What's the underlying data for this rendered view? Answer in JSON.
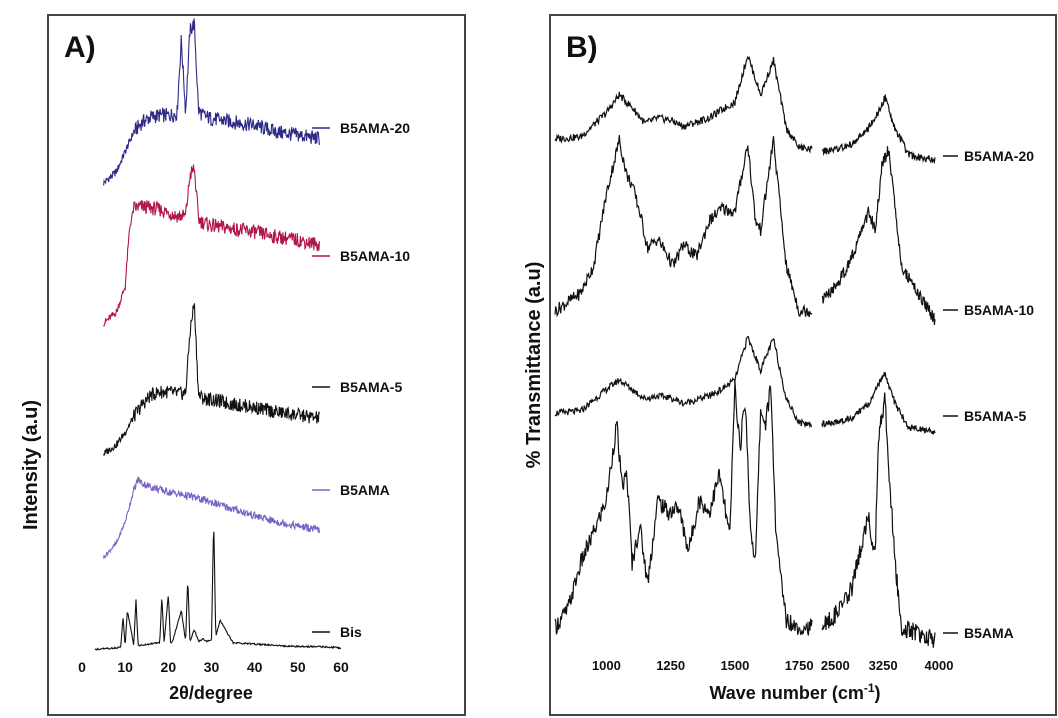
{
  "panelA": {
    "letter": "A)",
    "xlabel": "2θ/degree",
    "ylabel": "Intensity (a.u)",
    "xlim": [
      0,
      60
    ],
    "xticks": [
      "0",
      "10",
      "20",
      "30",
      "40",
      "50",
      "60"
    ],
    "colors": {
      "frame": "#444444"
    }
  },
  "panelB": {
    "letter": "B)",
    "xlabel_main": "Wave number (cm",
    "xlabel_sup": "-1",
    "xlabel_close": ")",
    "ylabel": "% Transmittance (a.u)",
    "xticks_left": [
      "1000",
      "1250",
      "1500",
      "1750"
    ],
    "xticks_right": [
      "2500",
      "3250",
      "4000"
    ],
    "colors": {
      "frame": "#444444"
    }
  },
  "chart_data": [
    {
      "type": "line",
      "title": "",
      "xlabel": "2θ/degree",
      "ylabel": "Intensity (a.u)",
      "xlim": [
        0,
        60
      ],
      "grid": false,
      "series": [
        {
          "name": "B5AMA-20",
          "color": "#2e2a86",
          "x": [
            5,
            8,
            10,
            12,
            14,
            16,
            18,
            20,
            22,
            23,
            24,
            25,
            26,
            27,
            28,
            30,
            35,
            40,
            45,
            50,
            55
          ],
          "y": [
            0.03,
            0.1,
            0.22,
            0.34,
            0.4,
            0.43,
            0.44,
            0.44,
            0.45,
            0.9,
            0.46,
            0.95,
            1.0,
            0.47,
            0.44,
            0.42,
            0.4,
            0.38,
            0.34,
            0.32,
            0.3
          ]
        },
        {
          "name": "B5AMA-10",
          "color": "#b0164a",
          "x": [
            5,
            8,
            10,
            11,
            12,
            14,
            16,
            18,
            20,
            22,
            24,
            25,
            26,
            27,
            28,
            30,
            35,
            40,
            45,
            50,
            55
          ],
          "y": [
            0.03,
            0.1,
            0.26,
            0.62,
            0.75,
            0.76,
            0.75,
            0.74,
            0.72,
            0.7,
            0.7,
            0.95,
            1.0,
            0.68,
            0.66,
            0.64,
            0.62,
            0.6,
            0.57,
            0.55,
            0.52
          ]
        },
        {
          "name": "B5AMA-5",
          "color": "#111111",
          "x": [
            5,
            8,
            10,
            12,
            14,
            16,
            18,
            20,
            22,
            24,
            25,
            26,
            27,
            28,
            30,
            35,
            40,
            45,
            50,
            55
          ],
          "y": [
            0.02,
            0.08,
            0.16,
            0.26,
            0.34,
            0.4,
            0.42,
            0.42,
            0.41,
            0.41,
            0.8,
            1.0,
            0.4,
            0.38,
            0.37,
            0.34,
            0.32,
            0.29,
            0.27,
            0.25
          ]
        },
        {
          "name": "B5AMA",
          "color": "#7b63c4",
          "x": [
            5,
            8,
            10,
            12,
            13,
            14,
            16,
            20,
            25,
            30,
            35,
            40,
            45,
            50,
            55
          ],
          "y": [
            0.03,
            0.2,
            0.45,
            0.82,
            0.95,
            0.9,
            0.86,
            0.8,
            0.75,
            0.68,
            0.6,
            0.52,
            0.45,
            0.4,
            0.35
          ]
        },
        {
          "name": "Bis",
          "color": "#111111",
          "x": [
            3,
            8,
            9,
            9.5,
            10,
            10.5,
            12,
            12.5,
            13,
            18,
            18.5,
            19,
            20,
            20.5,
            21,
            23,
            24,
            24.5,
            25,
            26,
            27,
            28,
            29,
            30,
            30.5,
            31,
            32,
            35,
            40,
            45,
            50,
            55,
            60
          ],
          "y": [
            0.0,
            0.01,
            0.02,
            0.25,
            0.02,
            0.3,
            0.03,
            0.38,
            0.03,
            0.05,
            0.4,
            0.05,
            0.42,
            0.05,
            0.06,
            0.3,
            0.06,
            0.55,
            0.06,
            0.15,
            0.06,
            0.08,
            0.06,
            0.07,
            1.0,
            0.1,
            0.22,
            0.05,
            0.04,
            0.03,
            0.02,
            0.02,
            0.01
          ]
        }
      ]
    },
    {
      "type": "line",
      "title": "",
      "xlabel": "Wave number (cm-1)",
      "ylabel": "% Transmittance (a.u)",
      "xlim": [
        800,
        4000
      ],
      "broken_axis": true,
      "grid": false,
      "series": [
        {
          "name": "B5AMA-20",
          "color": "#111111",
          "x": [
            800,
            900,
            1000,
            1050,
            1100,
            1150,
            1200,
            1250,
            1300,
            1350,
            1400,
            1450,
            1500,
            1550,
            1600,
            1650,
            1700,
            1750,
            1800,
            2300,
            2500,
            2750,
            3000,
            3150,
            3250,
            3400,
            3600,
            4000
          ],
          "y": [
            0.2,
            0.22,
            0.45,
            0.62,
            0.5,
            0.35,
            0.4,
            0.38,
            0.32,
            0.36,
            0.4,
            0.48,
            0.55,
            1.0,
            0.62,
            0.95,
            0.3,
            0.12,
            0.1,
            0.08,
            0.1,
            0.15,
            0.3,
            0.45,
            0.6,
            0.3,
            0.05,
            0.0
          ]
        },
        {
          "name": "B5AMA-10",
          "color": "#111111",
          "x": [
            800,
            900,
            950,
            1000,
            1050,
            1080,
            1100,
            1130,
            1160,
            1200,
            1230,
            1260,
            1300,
            1350,
            1400,
            1450,
            1500,
            1550,
            1580,
            1600,
            1650,
            1700,
            1750,
            1800,
            2300,
            2500,
            2750,
            3000,
            3100,
            3200,
            3300,
            3500,
            4000
          ],
          "y": [
            0.05,
            0.15,
            0.3,
            0.7,
            1.0,
            0.8,
            0.75,
            0.6,
            0.4,
            0.45,
            0.38,
            0.3,
            0.42,
            0.35,
            0.55,
            0.62,
            0.6,
            0.98,
            0.55,
            0.5,
            1.0,
            0.3,
            0.05,
            0.05,
            0.1,
            0.18,
            0.35,
            0.6,
            0.5,
            0.85,
            0.95,
            0.3,
            0.0
          ]
        },
        {
          "name": "B5AMA-5",
          "color": "#111111",
          "x": [
            800,
            900,
            1000,
            1050,
            1100,
            1150,
            1200,
            1250,
            1300,
            1350,
            1400,
            1450,
            1500,
            1550,
            1600,
            1650,
            1700,
            1750,
            1800,
            2300,
            2500,
            2750,
            3000,
            3150,
            3250,
            3400,
            3600,
            4000
          ],
          "y": [
            0.2,
            0.22,
            0.45,
            0.55,
            0.45,
            0.35,
            0.38,
            0.36,
            0.3,
            0.34,
            0.38,
            0.45,
            0.55,
            1.0,
            0.65,
            0.98,
            0.35,
            0.1,
            0.08,
            0.08,
            0.1,
            0.15,
            0.3,
            0.5,
            0.6,
            0.3,
            0.05,
            0.0
          ]
        },
        {
          "name": "B5AMA",
          "color": "#111111",
          "x": [
            800,
            850,
            900,
            950,
            1000,
            1040,
            1060,
            1080,
            1100,
            1130,
            1160,
            1200,
            1240,
            1280,
            1320,
            1360,
            1400,
            1440,
            1480,
            1500,
            1520,
            1540,
            1560,
            1580,
            1600,
            1620,
            1640,
            1660,
            1700,
            1750,
            1800,
            2300,
            2500,
            2750,
            3000,
            3050,
            3100,
            3150,
            3250,
            3300,
            3400,
            3500,
            4000
          ],
          "y": [
            0.05,
            0.12,
            0.3,
            0.42,
            0.55,
            0.85,
            0.6,
            0.65,
            0.3,
            0.45,
            0.22,
            0.55,
            0.5,
            0.52,
            0.35,
            0.55,
            0.5,
            0.65,
            0.4,
            1.0,
            0.75,
            0.95,
            0.45,
            0.3,
            0.9,
            0.85,
            1.0,
            0.4,
            0.08,
            0.05,
            0.05,
            0.05,
            0.1,
            0.2,
            0.5,
            0.4,
            0.35,
            0.8,
            0.95,
            0.7,
            0.3,
            0.05,
            0.0
          ]
        }
      ]
    }
  ]
}
